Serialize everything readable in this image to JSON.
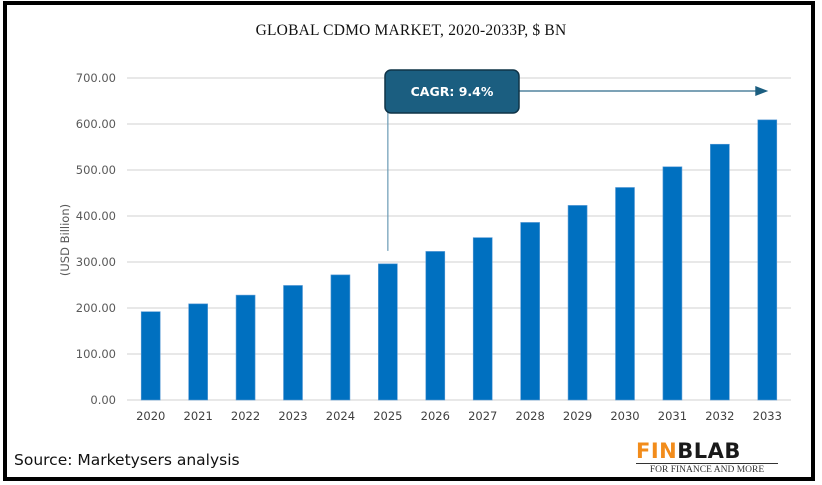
{
  "chart_data": {
    "type": "bar",
    "title": "GLOBAL CDMO MARKET, 2020-2033P, $ BN",
    "xlabel": "",
    "ylabel": "(USD Billion)",
    "ylim": [
      0,
      700
    ],
    "yticks": [
      0,
      100,
      200,
      300,
      400,
      500,
      600,
      700
    ],
    "ytick_labels": [
      "0.00",
      "100.00",
      "200.00",
      "300.00",
      "400.00",
      "500.00",
      "600.00",
      "700.00"
    ],
    "grid": true,
    "legend": "none",
    "categories": [
      "2020",
      "2021",
      "2022",
      "2023",
      "2024",
      "2025",
      "2026",
      "2027",
      "2028",
      "2029",
      "2030",
      "2031",
      "2032",
      "2033"
    ],
    "values": [
      192,
      209,
      228,
      249,
      272,
      296,
      323,
      353,
      386,
      423,
      462,
      507,
      556,
      609
    ],
    "bar_color": "#0070c0",
    "annotations": [
      {
        "text": "CAGR: 9.4%",
        "type": "callout-arrow",
        "from_category": "2025",
        "to_category": "2033"
      }
    ]
  },
  "footer": {
    "source": "Source: Marketysers analysis",
    "logo_part1": "FIN",
    "logo_part2": "BLAB",
    "logo_tagline": "FOR FINANCE AND MORE"
  },
  "colors": {
    "bar": "#0070c0",
    "callout_fill": "#1b5e80",
    "callout_border": "#0f3347",
    "arrow": "#2e6b8a",
    "gridline": "#d9d9d9",
    "logo_orange": "#f28c1b"
  }
}
